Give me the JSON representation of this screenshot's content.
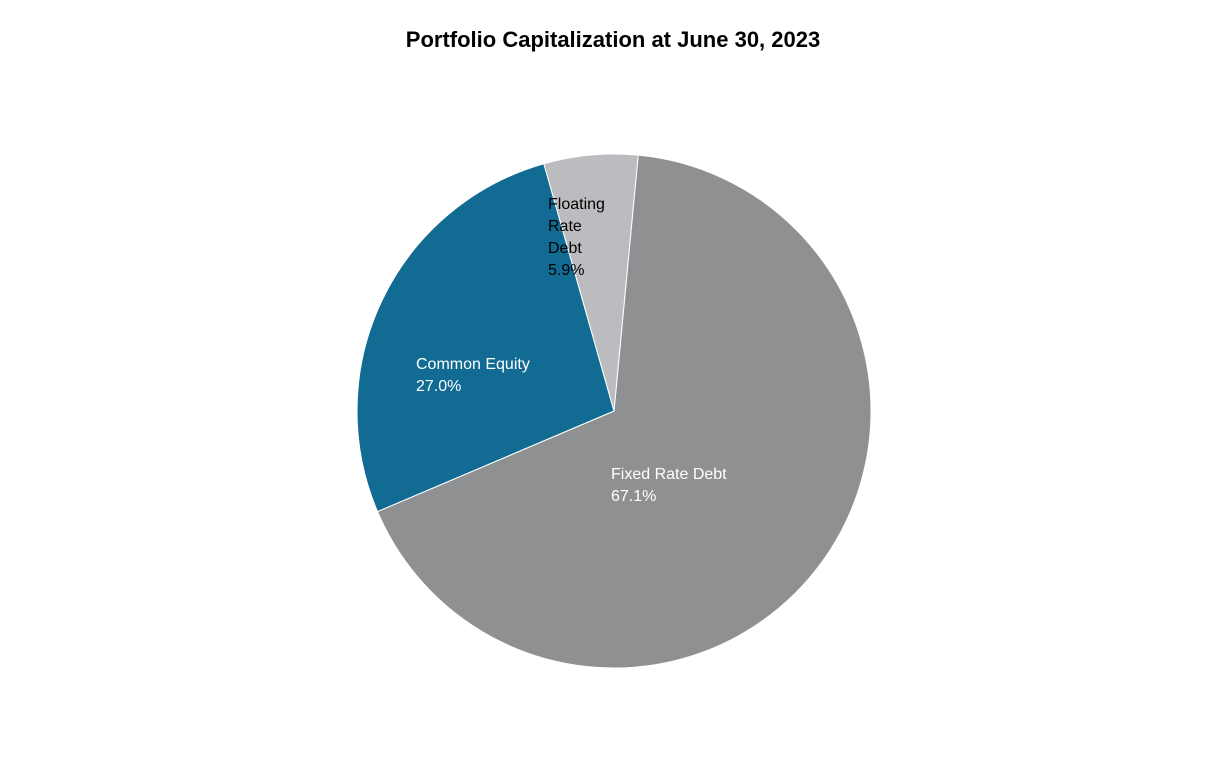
{
  "chart_data": {
    "type": "pie",
    "title": "Portfolio Capitalization at June 30, 2023",
    "slices": [
      {
        "label_lines": [
          "Fixed Rate Debt"
        ],
        "value": 67.1,
        "value_label": "67.1%",
        "color": "#8f9092",
        "label_color": "#ffffff"
      },
      {
        "label_lines": [
          "Common Equity"
        ],
        "value": 27.0,
        "value_label": "27.0%",
        "color": "#116b93",
        "label_color": "#ffffff"
      },
      {
        "label_lines": [
          "Floating",
          "Rate",
          "Debt"
        ],
        "value": 5.9,
        "value_label": "5.9%",
        "color": "#bbbcbf",
        "label_color": "#000000"
      }
    ]
  }
}
